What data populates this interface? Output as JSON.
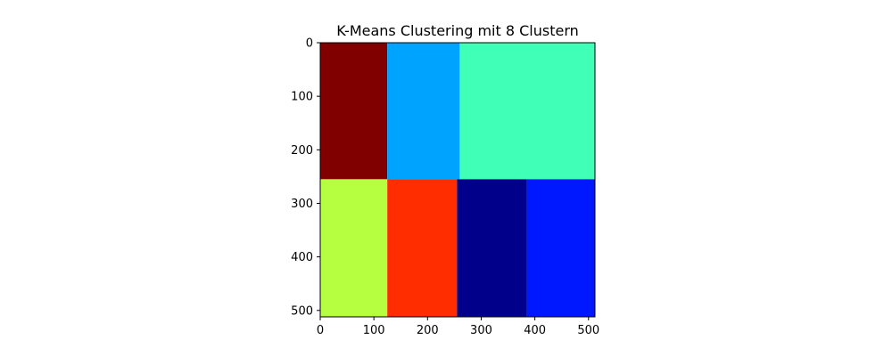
{
  "chart_data": {
    "type": "heatmap",
    "title": "K-Means Clustering mit 8 Clustern",
    "xlabel": "",
    "ylabel": "",
    "xlim": [
      0,
      512
    ],
    "ylim": [
      512,
      0
    ],
    "grid": false,
    "legend": "none",
    "colormap": "jet",
    "xticks": [
      0,
      100,
      200,
      300,
      400,
      500
    ],
    "yticks": [
      0,
      100,
      200,
      300,
      400,
      500
    ],
    "cluster_colors": [
      "#00008b",
      "#0018ff",
      "#00a4ff",
      "#40ffb6",
      "#b6ff40",
      "#ffb300",
      "#ff2d00",
      "#800000"
    ],
    "regions": [
      {
        "cluster": 7,
        "x": [
          0,
          125
        ],
        "y": [
          0,
          255
        ]
      },
      {
        "cluster": 2,
        "x": [
          125,
          260
        ],
        "y": [
          0,
          255
        ]
      },
      {
        "cluster": 3,
        "x": [
          260,
          512
        ],
        "y": [
          0,
          255
        ]
      },
      {
        "cluster": 4,
        "x": [
          0,
          125
        ],
        "y": [
          255,
          512
        ]
      },
      {
        "cluster": 6,
        "x": [
          125,
          255
        ],
        "y": [
          255,
          512
        ]
      },
      {
        "cluster": 0,
        "x": [
          255,
          385
        ],
        "y": [
          255,
          512
        ]
      },
      {
        "cluster": 1,
        "x": [
          385,
          512
        ],
        "y": [
          255,
          512
        ]
      }
    ]
  }
}
